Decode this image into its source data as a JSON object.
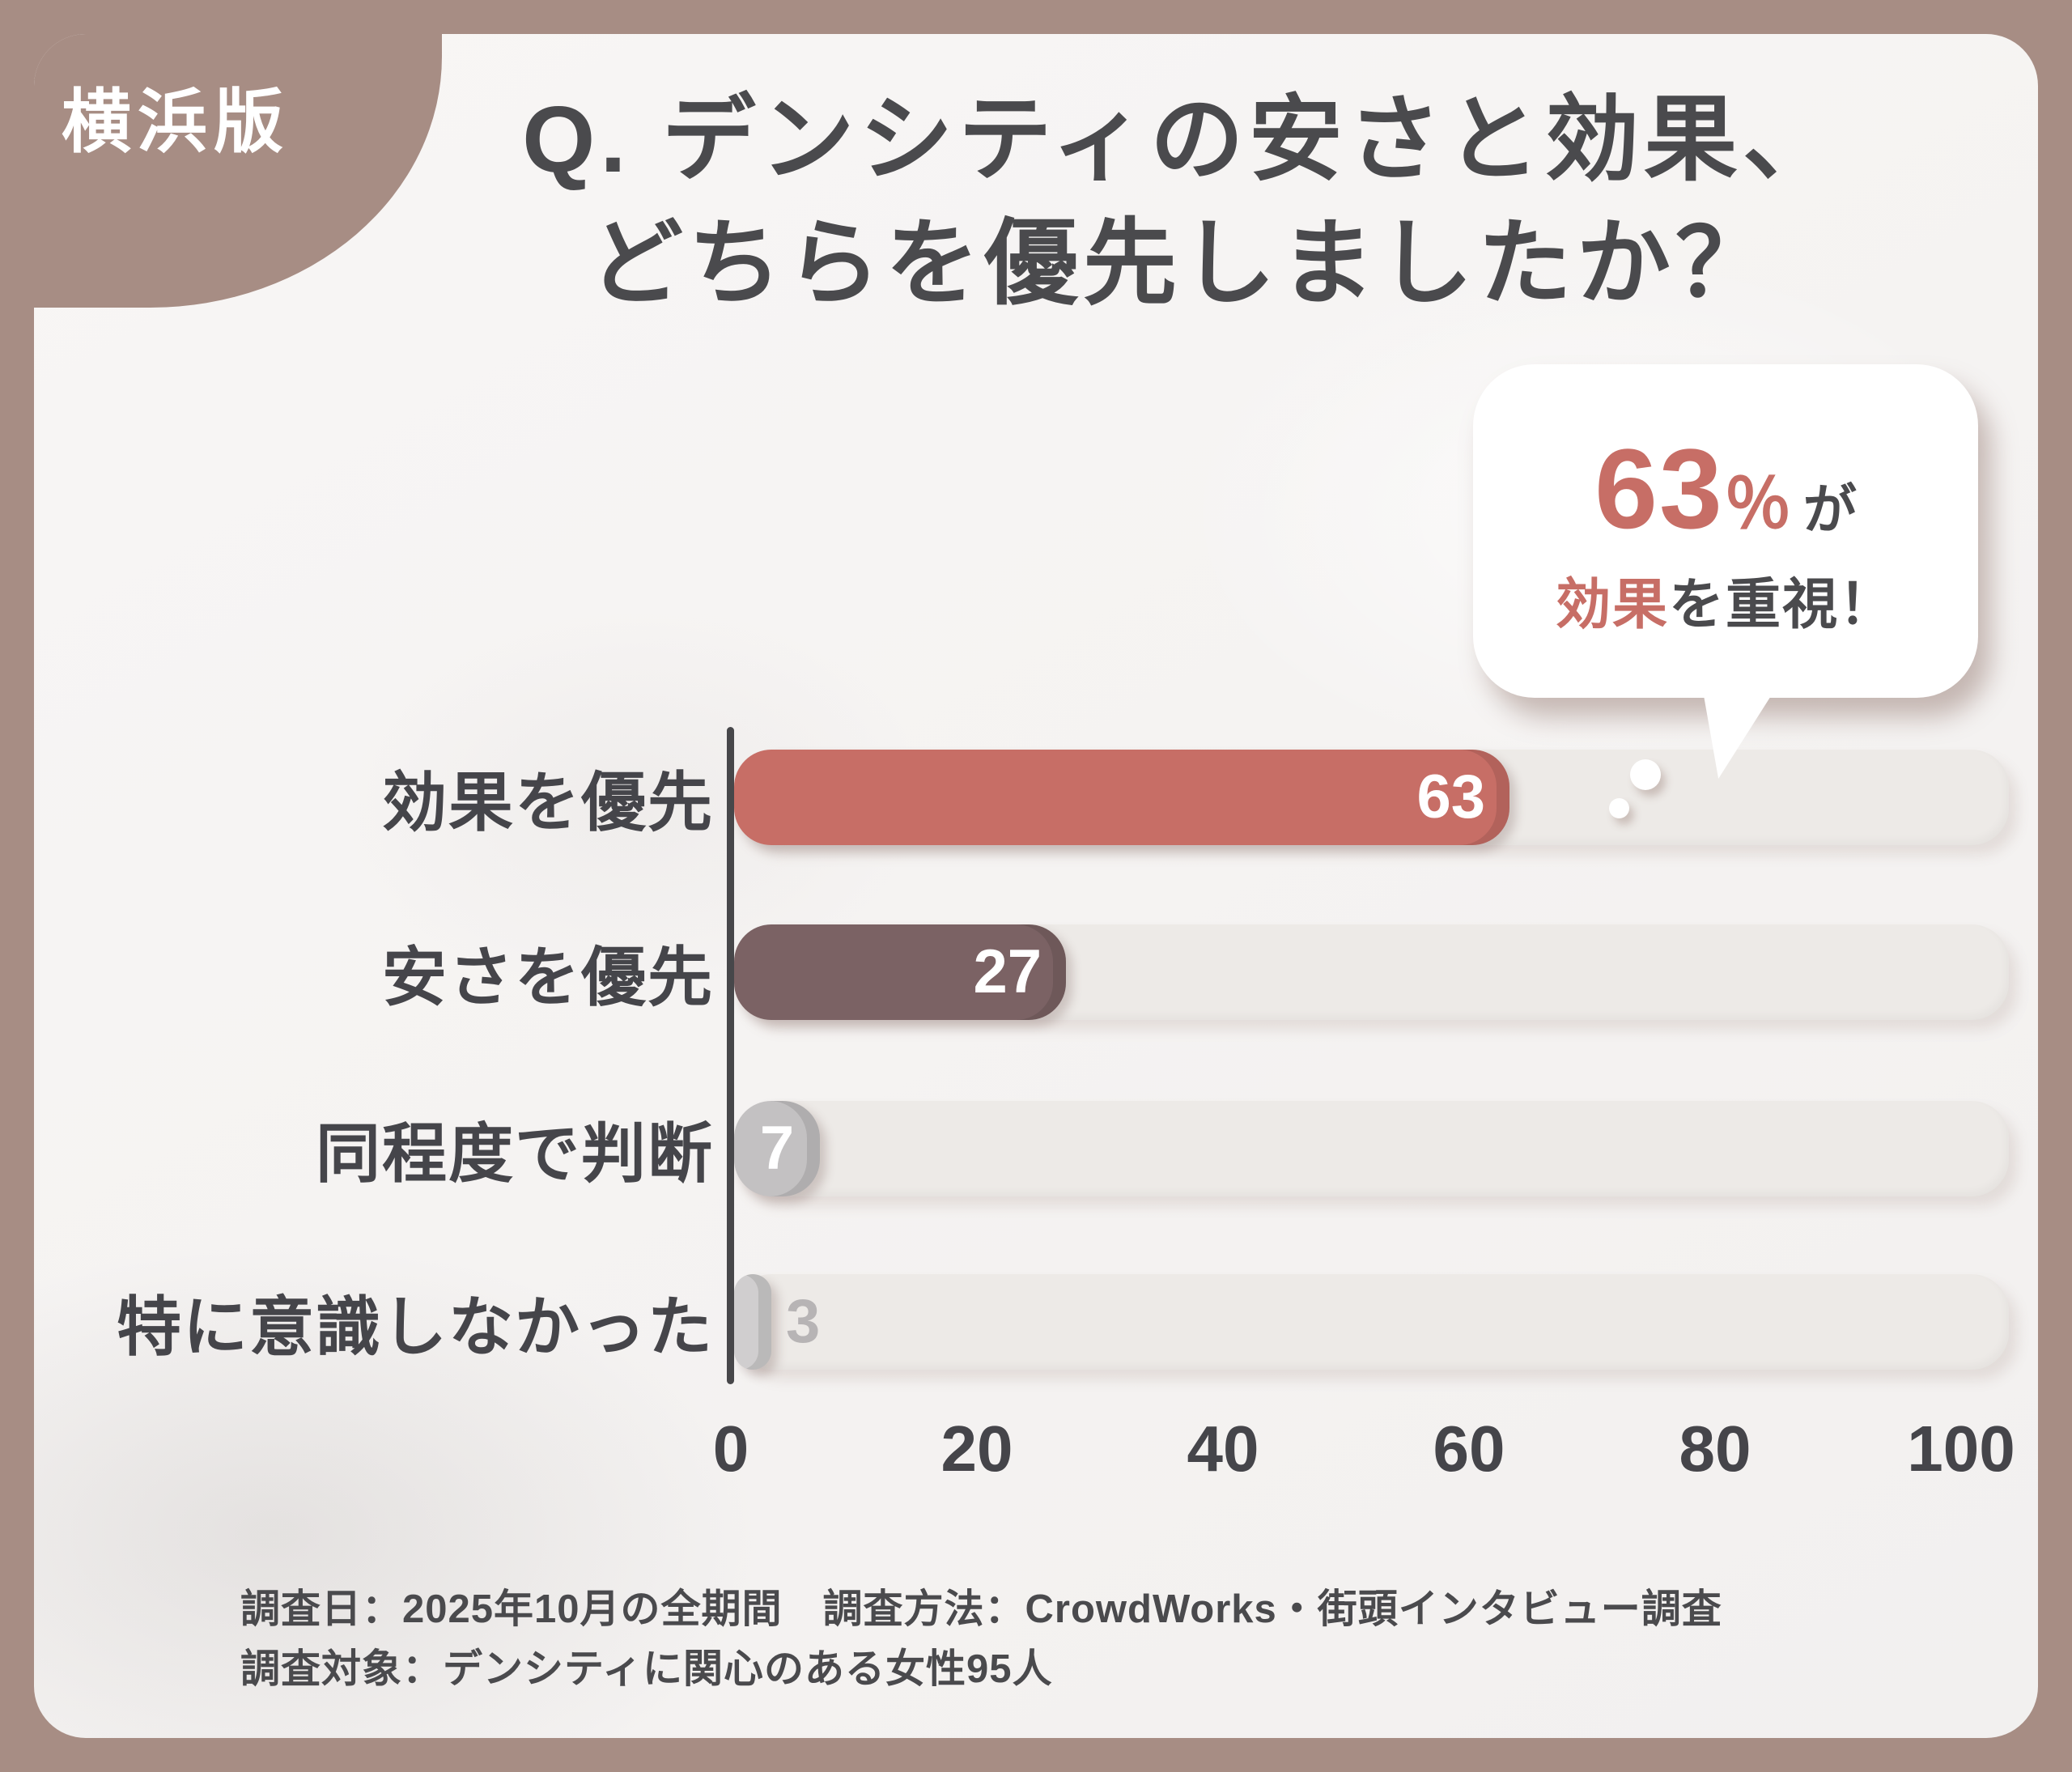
{
  "badge": {
    "label": "横浜版"
  },
  "title": {
    "line1": "Q. デンシティの安さと効果、",
    "line2": "どちらを優先しましたか？"
  },
  "callout": {
    "number": "63",
    "unit": "％",
    "suffix": "が",
    "line2_highlight": "効果",
    "line2_rest": "を重視！"
  },
  "chart_data": {
    "type": "bar",
    "orientation": "horizontal",
    "title": "デンシティの安さと効果、どちらを優先しましたか？",
    "categories": [
      "効果を優先",
      "安さを優先",
      "同程度で判断",
      "特に意識しなかった"
    ],
    "values": [
      63,
      27,
      7,
      3
    ],
    "xlim": [
      0,
      100
    ],
    "x_ticks": [
      0,
      20,
      40,
      60,
      80,
      100
    ],
    "grid": false,
    "legend": "none",
    "bar_colors": [
      "#c76e66",
      "#7b6264",
      "#c3c1c2",
      "#d0cecf"
    ],
    "value_label_colors": [
      "#ffffff",
      "#ffffff",
      "#ffffff",
      "#b7b4b5"
    ],
    "track_color": "#edeae7"
  },
  "footer": {
    "line1": "調査日：2025年10月の全期間　調査方法：CrowdWorks・街頭インタビュー調査",
    "line2": "調査対象：デンシティに関心のある女性95人"
  },
  "colors": {
    "frame": "#a78d84",
    "card_bg": "#f5f3f2",
    "accent": "#c76e66",
    "secondary_bar": "#7b6264",
    "track": "#edeae7",
    "text": "#4a4a4d",
    "axis": "#47474a"
  }
}
